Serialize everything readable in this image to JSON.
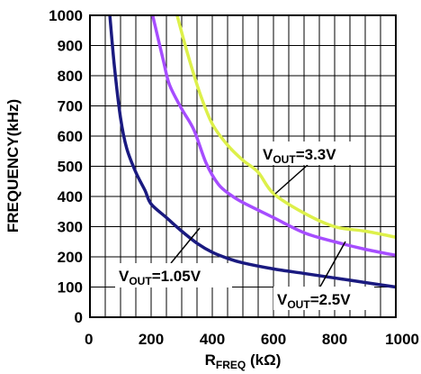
{
  "chart_data": {
    "type": "line",
    "xlabel": "R",
    "xlabel_sub": "FREQ",
    "xlabel_unit": " (kΩ)",
    "ylabel": "FREQUENCY(kHz)",
    "xlim": [
      0,
      1000
    ],
    "ylim": [
      0,
      1000
    ],
    "x_ticks": [
      0,
      200,
      400,
      600,
      800,
      1000
    ],
    "y_ticks": [
      0,
      100,
      200,
      300,
      400,
      500,
      600,
      700,
      800,
      900,
      1000
    ],
    "grid": true,
    "series": [
      {
        "name_parts": [
          "V",
          "OUT",
          "=1.05V"
        ],
        "color": "#1a1a80",
        "x": [
          65,
          80,
          100,
          120,
          150,
          180,
          200,
          250,
          300,
          350,
          400,
          450,
          500,
          600,
          700,
          800,
          900,
          1000
        ],
        "y": [
          1000,
          830,
          660,
          560,
          480,
          420,
          375,
          330,
          285,
          245,
          215,
          195,
          180,
          160,
          145,
          130,
          115,
          100
        ]
      },
      {
        "name_parts": [
          "V",
          "OUT",
          "=2.5V"
        ],
        "color": "#a64dff",
        "x": [
          205,
          240,
          260,
          300,
          340,
          380,
          420,
          460,
          500,
          600,
          700,
          800,
          900,
          1000
        ],
        "y": [
          1000,
          850,
          770,
          690,
          620,
          510,
          440,
          405,
          380,
          330,
          280,
          250,
          225,
          205
        ]
      },
      {
        "name_parts": [
          "V",
          "OUT",
          "=3.3V"
        ],
        "color": "#ddf04a",
        "x": [
          285,
          320,
          360,
          400,
          450,
          500,
          550,
          600,
          700,
          800,
          900,
          1000
        ],
        "y": [
          1000,
          870,
          740,
          640,
          570,
          520,
          480,
          410,
          345,
          300,
          285,
          265
        ]
      }
    ]
  }
}
